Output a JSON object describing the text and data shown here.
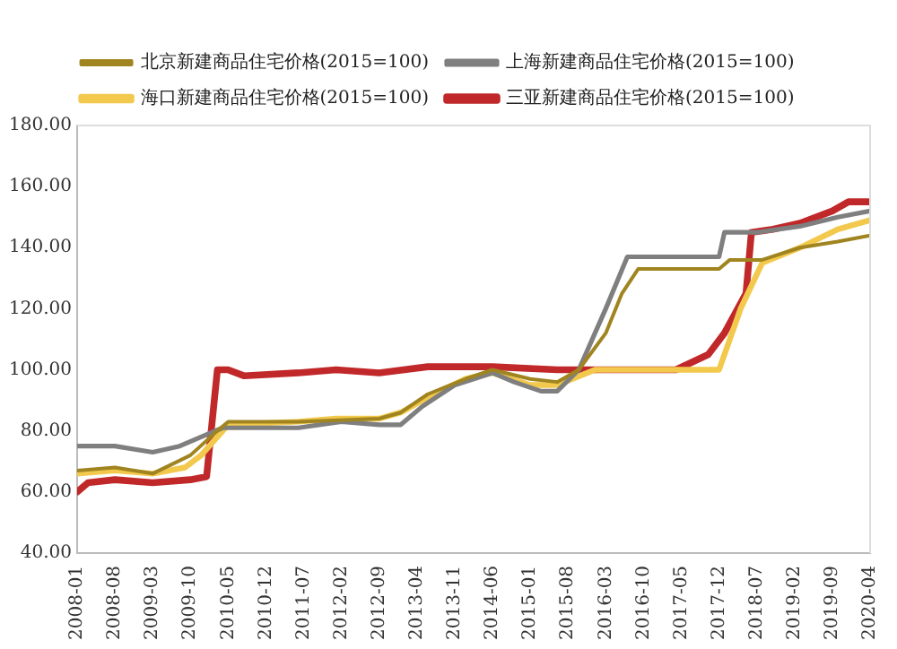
{
  "chart_data": {
    "type": "line",
    "legend": "top",
    "grid": false,
    "marker": "none",
    "line_style": "solid",
    "xlim": [
      "2008-01",
      "2020-04"
    ],
    "xticks": [
      {
        "value": "2008-01",
        "label": "2008-01"
      },
      {
        "value": "2008-08",
        "label": "2008-08"
      },
      {
        "value": "2009-03",
        "label": "2009-03"
      },
      {
        "value": "2009-10",
        "label": "2009-10"
      },
      {
        "value": "2010-05",
        "label": "2010-05"
      },
      {
        "value": "2010-12",
        "label": "2010-12"
      },
      {
        "value": "2011-07",
        "label": "2011-07"
      },
      {
        "value": "2012-02",
        "label": "2012-02"
      },
      {
        "value": "2012-09",
        "label": "2012-09"
      },
      {
        "value": "2013-04",
        "label": "2013-04"
      },
      {
        "value": "2013-11",
        "label": "2013-11"
      },
      {
        "value": "2014-06",
        "label": "2014-06"
      },
      {
        "value": "2015-01",
        "label": "2015-01"
      },
      {
        "value": "2015-08",
        "label": "2015-08"
      },
      {
        "value": "2016-03",
        "label": "2016-03"
      },
      {
        "value": "2016-10",
        "label": "2016-10"
      },
      {
        "value": "2017-05",
        "label": "2017-05"
      },
      {
        "value": "2017-12",
        "label": "2017-12"
      },
      {
        "value": "2018-07",
        "label": "2018-07"
      },
      {
        "value": "2019-02",
        "label": "2019-02"
      },
      {
        "value": "2019-09",
        "label": "2019-09"
      },
      {
        "value": "2020-04",
        "label": "2020-04"
      }
    ],
    "ylim": [
      40,
      180
    ],
    "yticks": [
      {
        "value": 40,
        "label": "40.00"
      },
      {
        "value": 60,
        "label": "60.00"
      },
      {
        "value": 80,
        "label": "80.00"
      },
      {
        "value": 100,
        "label": "100.00"
      },
      {
        "value": 120,
        "label": "120.00"
      },
      {
        "value": 140,
        "label": "140.00"
      },
      {
        "value": 160,
        "label": "160.00"
      },
      {
        "value": 180,
        "label": "180.00"
      }
    ],
    "series": [
      {
        "name": "北京新建商品住宅价格(2015=100)",
        "color": "#a08420",
        "x": [
          "2008-01",
          "2008-08",
          "2009-03",
          "2009-10",
          "2010-03",
          "2010-05",
          "2011-06",
          "2012-09",
          "2013-01",
          "2013-06",
          "2014-01",
          "2014-06",
          "2015-01",
          "2015-06",
          "2015-10",
          "2016-03",
          "2016-06",
          "2016-09",
          "2017-12",
          "2018-02",
          "2018-08",
          "2019-03",
          "2019-10",
          "2020-04"
        ],
        "values": [
          67,
          68,
          66,
          72,
          80,
          83,
          83,
          84,
          86,
          92,
          97,
          100,
          97,
          96,
          100,
          112,
          125,
          133,
          133,
          136,
          136,
          140,
          142,
          144
        ]
      },
      {
        "name": "上海新建商品住宅价格(2015=100)",
        "color": "#7f7f7f",
        "x": [
          "2008-01",
          "2008-08",
          "2009-03",
          "2009-08",
          "2009-12",
          "2010-04",
          "2011-06",
          "2012-02",
          "2012-09",
          "2013-01",
          "2013-05",
          "2013-11",
          "2014-06",
          "2014-10",
          "2015-03",
          "2015-06",
          "2015-10",
          "2016-03",
          "2016-07",
          "2017-12",
          "2018-01",
          "2018-07",
          "2019-03",
          "2019-10",
          "2020-04"
        ],
        "values": [
          75,
          75,
          73,
          75,
          78,
          81,
          81,
          83,
          82,
          82,
          88,
          95,
          99,
          96,
          93,
          93,
          100,
          120,
          137,
          137,
          145,
          145,
          147,
          150,
          152
        ]
      },
      {
        "name": "海口新建商品住宅价格(2015=100)",
        "color": "#f2c94c",
        "x": [
          "2008-01",
          "2008-08",
          "2009-03",
          "2009-09",
          "2009-12",
          "2010-03",
          "2010-05",
          "2011-06",
          "2012-01",
          "2012-09",
          "2013-01",
          "2013-06",
          "2014-01",
          "2014-06",
          "2015-01",
          "2015-06",
          "2016-01",
          "2017-12",
          "2018-04",
          "2018-08",
          "2019-03",
          "2019-10",
          "2020-04"
        ],
        "values": [
          66,
          67,
          66,
          68,
          72,
          78,
          82,
          83,
          84,
          84,
          86,
          91,
          97,
          99,
          95,
          95,
          100,
          100,
          120,
          135,
          140,
          146,
          149
        ]
      },
      {
        "name": "三亚新建商品住宅价格(2015=100)",
        "color": "#c0282a",
        "x": [
          "2008-01",
          "2008-03",
          "2008-08",
          "2009-03",
          "2009-10",
          "2010-01",
          "2010-03",
          "2010-05",
          "2010-08",
          "2011-06",
          "2012-01",
          "2012-09",
          "2013-06",
          "2014-06",
          "2015-06",
          "2016-06",
          "2017-04",
          "2017-10",
          "2018-01",
          "2018-05",
          "2018-06",
          "2018-10",
          "2019-03",
          "2019-09",
          "2019-12",
          "2020-04"
        ],
        "values": [
          60,
          63,
          64,
          63,
          64,
          65,
          100,
          100,
          98,
          99,
          100,
          99,
          101,
          101,
          100,
          100,
          100,
          105,
          112,
          125,
          145,
          146,
          148,
          152,
          155,
          155
        ]
      }
    ]
  }
}
